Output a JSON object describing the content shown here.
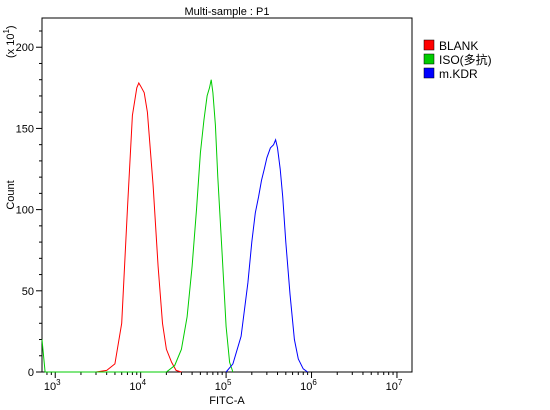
{
  "chart_data": {
    "type": "line",
    "title": "Multi-sample : P1",
    "xlabel": "FITC-A",
    "ylabel": "Count",
    "y_multiplier_label": "(x 10",
    "y_multiplier_exp": "1",
    "x_scale": "log",
    "xlim": [
      700,
      15000000
    ],
    "ylim": [
      0,
      218
    ],
    "x_ticks": [
      {
        "value": 1000,
        "base": "10",
        "exp": "3"
      },
      {
        "value": 10000,
        "base": "10",
        "exp": "4"
      },
      {
        "value": 100000,
        "base": "10",
        "exp": "5"
      },
      {
        "value": 1000000,
        "base": "10",
        "exp": "6"
      },
      {
        "value": 10000000,
        "base": "10",
        "exp": "7"
      }
    ],
    "y_ticks": [
      0,
      50,
      100,
      150,
      200
    ],
    "legend_position": "right-top",
    "series": [
      {
        "name": "BLANK",
        "color": "#ff0000",
        "points": [
          [
            3000,
            0
          ],
          [
            4000,
            1
          ],
          [
            5000,
            5
          ],
          [
            6000,
            30
          ],
          [
            7000,
            100
          ],
          [
            8000,
            158
          ],
          [
            9000,
            175
          ],
          [
            9500,
            178
          ],
          [
            10000,
            176
          ],
          [
            11000,
            172
          ],
          [
            12000,
            160
          ],
          [
            14000,
            115
          ],
          [
            16000,
            65
          ],
          [
            18000,
            30
          ],
          [
            20000,
            14
          ],
          [
            23000,
            6
          ],
          [
            26000,
            1
          ],
          [
            30000,
            0
          ]
        ]
      },
      {
        "name": "ISO(多抗)",
        "color": "#00cc00",
        "points": [
          [
            700,
            20
          ],
          [
            760,
            0
          ],
          [
            20000,
            0
          ],
          [
            25000,
            4
          ],
          [
            30000,
            14
          ],
          [
            35000,
            34
          ],
          [
            40000,
            65
          ],
          [
            45000,
            100
          ],
          [
            50000,
            135
          ],
          [
            55000,
            155
          ],
          [
            60000,
            170
          ],
          [
            64000,
            175
          ],
          [
            67000,
            180
          ],
          [
            70000,
            172
          ],
          [
            75000,
            152
          ],
          [
            80000,
            120
          ],
          [
            90000,
            72
          ],
          [
            100000,
            28
          ],
          [
            110000,
            6
          ],
          [
            120000,
            0
          ]
        ]
      },
      {
        "name": "m.KDR",
        "color": "#0000ff",
        "points": [
          [
            100000,
            0
          ],
          [
            120000,
            5
          ],
          [
            150000,
            22
          ],
          [
            180000,
            55
          ],
          [
            200000,
            80
          ],
          [
            220000,
            98
          ],
          [
            240000,
            108
          ],
          [
            260000,
            118
          ],
          [
            280000,
            125
          ],
          [
            300000,
            132
          ],
          [
            330000,
            138
          ],
          [
            360000,
            140
          ],
          [
            380000,
            143
          ],
          [
            400000,
            138
          ],
          [
            430000,
            125
          ],
          [
            460000,
            108
          ],
          [
            500000,
            80
          ],
          [
            560000,
            48
          ],
          [
            630000,
            20
          ],
          [
            700000,
            8
          ],
          [
            800000,
            2
          ],
          [
            900000,
            0
          ]
        ]
      }
    ]
  }
}
